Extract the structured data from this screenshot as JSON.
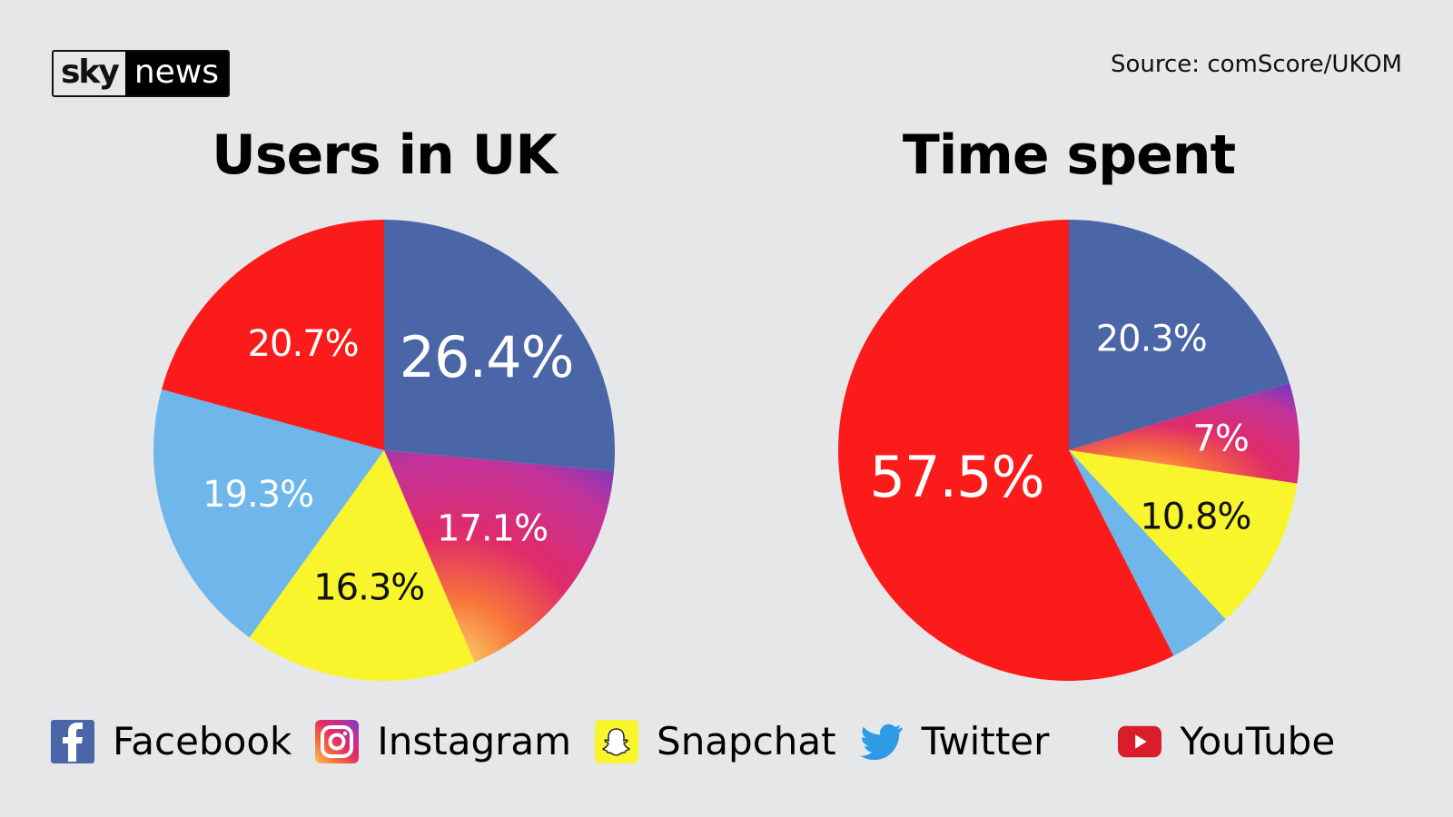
{
  "logo": {
    "part1": "sky",
    "part2": "news"
  },
  "source": "Source: comScore/UKOM",
  "colors": {
    "Facebook": "#4a66a6",
    "Instagram": "#c2339a",
    "Snapchat": "#f8f52c",
    "Twitter": "#6fb6ea",
    "YouTube": "#fc1b1b",
    "background": "#e6e7e8"
  },
  "chart_data": [
    {
      "type": "pie",
      "title": "Users in UK",
      "categories": [
        "Facebook",
        "Instagram",
        "Snapchat",
        "Twitter",
        "YouTube"
      ],
      "values": [
        26.4,
        17.1,
        16.3,
        19.3,
        20.7
      ],
      "labels": [
        "26.4%",
        "17.1%",
        "16.3%",
        "19.3%",
        "20.7%"
      ]
    },
    {
      "type": "pie",
      "title": "Time spent",
      "categories": [
        "Facebook",
        "Instagram",
        "Snapchat",
        "Twitter",
        "YouTube"
      ],
      "values": [
        20.3,
        7,
        10.8,
        4.4,
        57.5
      ],
      "labels": [
        "20.3%",
        "7%",
        "10.8%",
        "",
        "57.5%"
      ]
    }
  ],
  "legend": [
    {
      "label": "Facebook",
      "icon": "facebook-icon"
    },
    {
      "label": "Instagram",
      "icon": "instagram-icon"
    },
    {
      "label": "Snapchat",
      "icon": "snapchat-icon"
    },
    {
      "label": "Twitter",
      "icon": "twitter-icon"
    },
    {
      "label": "YouTube",
      "icon": "youtube-icon"
    }
  ]
}
